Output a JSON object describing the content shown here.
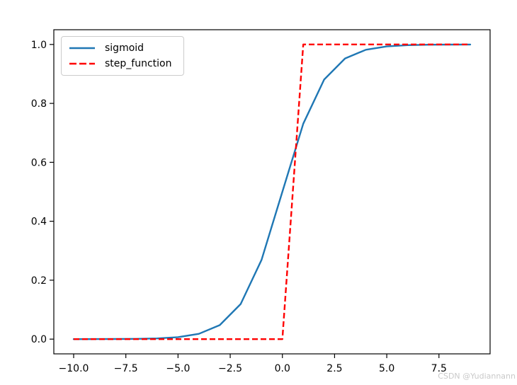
{
  "watermark": {
    "text": "CSDN @Yudiannann",
    "color": "#c9c9c9"
  },
  "chart_data": {
    "type": "line",
    "title": "",
    "xlabel": "",
    "ylabel": "",
    "grid": false,
    "legend_position": "upper-left",
    "axis_color": "#000000",
    "xlim": [
      -10.95,
      9.95
    ],
    "ylim": [
      -0.05,
      1.05
    ],
    "x_ticks": [
      -10,
      -7.5,
      -5,
      -2.5,
      0,
      2.5,
      5,
      7.5
    ],
    "x_tick_labels": [
      "−10.0",
      "−7.5",
      "−5.0",
      "−2.5",
      "0.0",
      "2.5",
      "5.0",
      "7.5"
    ],
    "y_ticks": [
      0,
      0.2,
      0.4,
      0.6,
      0.8,
      1
    ],
    "y_tick_labels": [
      "0.0",
      "0.2",
      "0.4",
      "0.6",
      "0.8",
      "1.0"
    ],
    "x": [
      -10,
      -9,
      -8,
      -7,
      -6,
      -5,
      -4,
      -3,
      -2,
      -1,
      0,
      1,
      2,
      3,
      4,
      5,
      6,
      7,
      8,
      9
    ],
    "series": [
      {
        "name": "sigmoid",
        "label": "sigmoid",
        "color": "#1f77b4",
        "style": "solid",
        "values": [
          4.5e-05,
          0.000123,
          0.000335,
          0.000911,
          0.002473,
          0.006693,
          0.017986,
          0.047426,
          0.119203,
          0.268941,
          0.5,
          0.731059,
          0.880797,
          0.952574,
          0.982014,
          0.993307,
          0.997527,
          0.999089,
          0.999665,
          0.999877
        ]
      },
      {
        "name": "step_function",
        "label": "step_function",
        "color": "#ff0000",
        "style": "dashed",
        "values": [
          0,
          0,
          0,
          0,
          0,
          0,
          0,
          0,
          0,
          0,
          0,
          1,
          1,
          1,
          1,
          1,
          1,
          1,
          1,
          1
        ]
      }
    ]
  }
}
